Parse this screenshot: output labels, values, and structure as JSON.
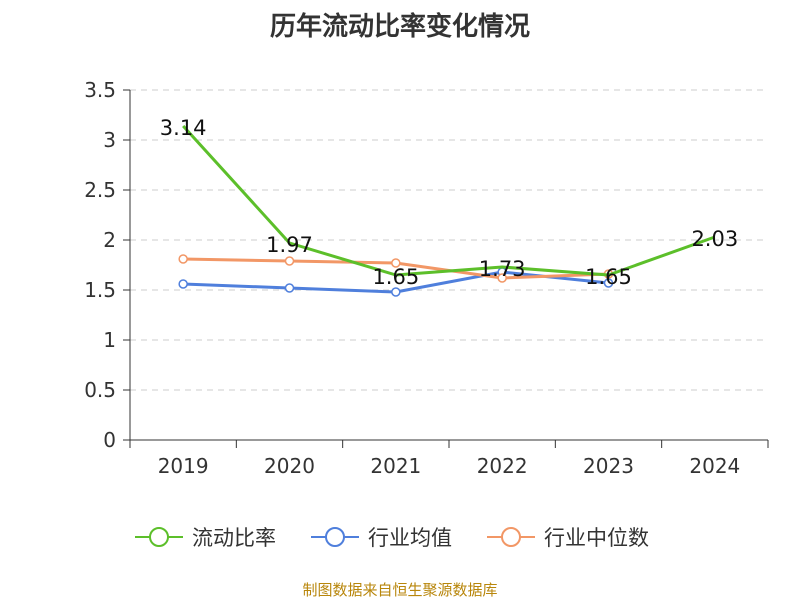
{
  "chart_data": {
    "type": "line",
    "title": "历年流动比率变化情况",
    "categories": [
      "2019",
      "2020",
      "2021",
      "2022",
      "2023",
      "2024"
    ],
    "ylim": [
      0,
      3.5
    ],
    "yticks": [
      "0",
      "0.5",
      "1",
      "1.5",
      "2",
      "2.5",
      "3",
      "3.5"
    ],
    "grid": true,
    "legend_position": "bottom",
    "series": [
      {
        "name": "流动比率",
        "color": "#5cbf2a",
        "values": [
          3.14,
          1.97,
          1.65,
          1.73,
          1.65,
          2.03
        ],
        "labels": [
          "3.14",
          "1.97",
          "1.65",
          "1.73",
          "1.65",
          "2.03"
        ],
        "markers": false
      },
      {
        "name": "行业均值",
        "color": "#4f7fdc",
        "values": [
          1.56,
          1.52,
          1.48,
          1.68,
          1.57,
          null
        ],
        "markers": true
      },
      {
        "name": "行业中位数",
        "color": "#f29766",
        "values": [
          1.81,
          1.79,
          1.77,
          1.62,
          1.66,
          null
        ],
        "markers": true
      }
    ],
    "source": "制图数据来自恒生聚源数据库"
  }
}
